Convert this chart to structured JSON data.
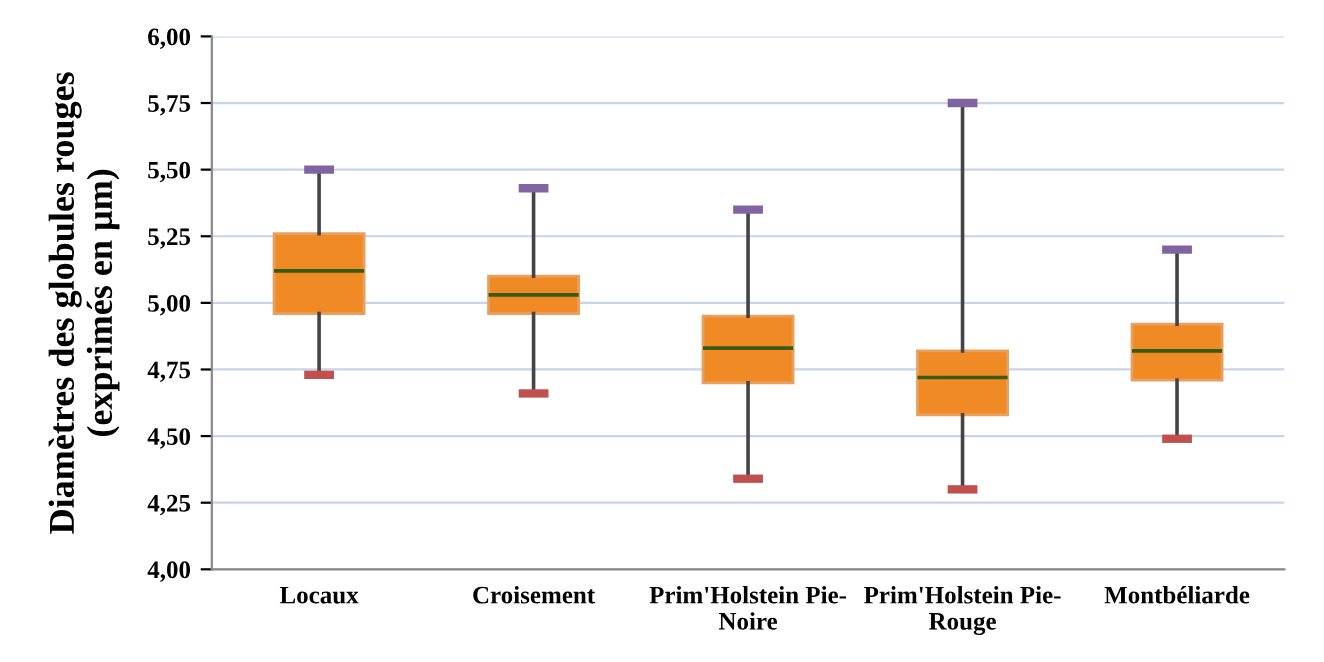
{
  "chart_data": {
    "type": "box",
    "ylabel": "Diamètres des globules rouges (exprimés en µm)",
    "categories": [
      "Locaux",
      "Croisement",
      "Prim'Holstein Pie-Noire",
      "Prim'Holstein Pie-Rouge",
      "Montbéliarde"
    ],
    "series": [
      {
        "color": "#f08a24",
        "boxes": [
          {
            "low": 4.73,
            "q1": 4.96,
            "median": 5.12,
            "q3": 5.26,
            "high": 5.5
          },
          {
            "low": 4.66,
            "q1": 4.96,
            "median": 5.03,
            "q3": 5.1,
            "high": 5.43
          },
          {
            "low": 4.34,
            "q1": 4.7,
            "median": 4.83,
            "q3": 4.95,
            "high": 5.35
          },
          {
            "low": 4.3,
            "q1": 4.58,
            "median": 4.72,
            "q3": 4.82,
            "high": 5.75
          },
          {
            "low": 4.49,
            "q1": 4.71,
            "median": 4.82,
            "q3": 4.92,
            "high": 5.2
          }
        ]
      }
    ],
    "ylim": [
      4.0,
      6.0
    ],
    "yticks": [
      {
        "value": 4.0,
        "label": "4,00"
      },
      {
        "value": 4.25,
        "label": "4,25"
      },
      {
        "value": 4.5,
        "label": "4,50"
      },
      {
        "value": 4.75,
        "label": "4,75"
      },
      {
        "value": 5.0,
        "label": "5,00"
      },
      {
        "value": 5.25,
        "label": "5,25"
      },
      {
        "value": 5.5,
        "label": "5,50"
      },
      {
        "value": 5.75,
        "label": "5,75"
      },
      {
        "value": 6.0,
        "label": "6,00"
      }
    ],
    "grid": "y",
    "legend": false
  }
}
